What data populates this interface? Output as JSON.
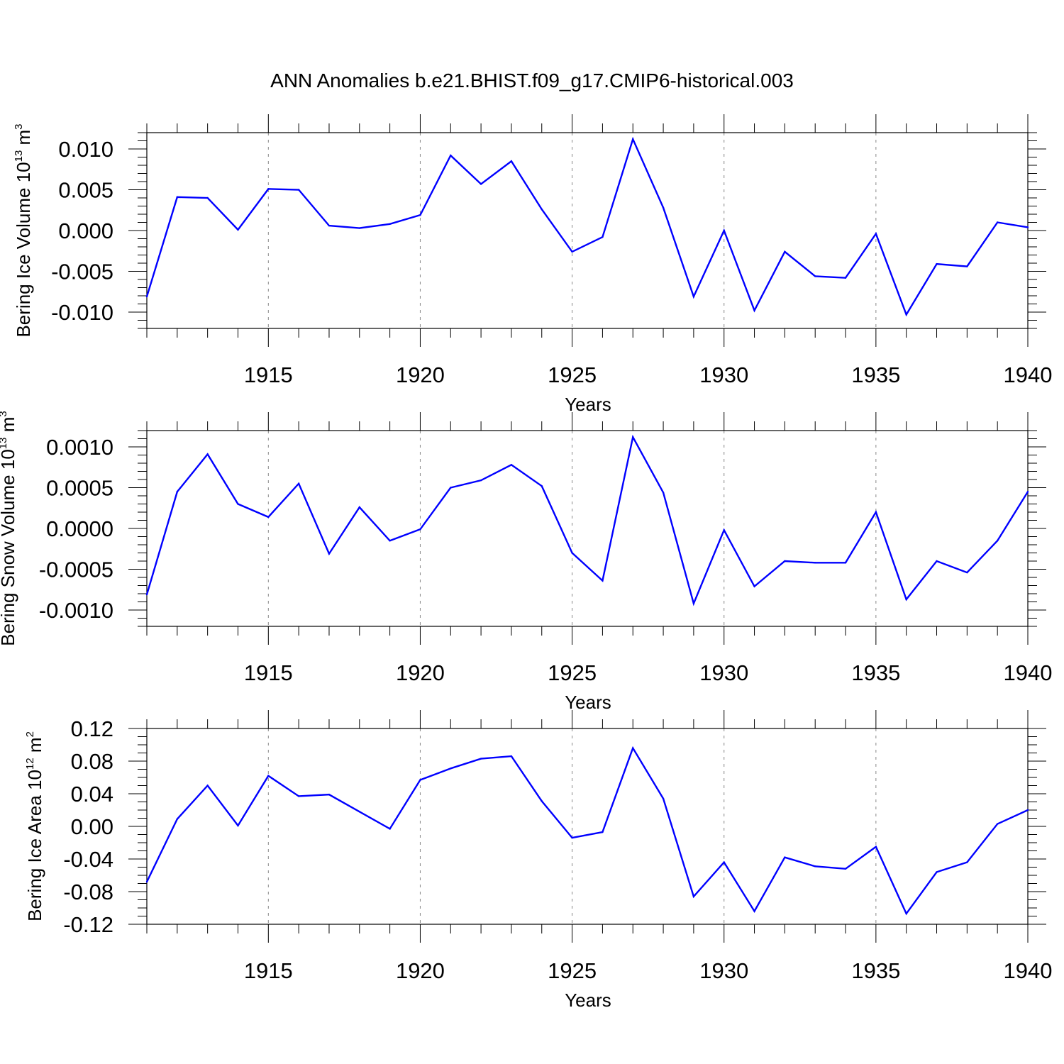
{
  "figure": {
    "title": "ANN Anomalies b.e21.BHIST.f09_g17.CMIP6-historical.003"
  },
  "chart_data": [
    {
      "type": "line",
      "xlabel": "Years",
      "ylabel": {
        "base": "Bering Ice Volume 10",
        "exponent": "13",
        "unit": " m",
        "unit_exponent": "3"
      },
      "xlim": [
        1911,
        1940
      ],
      "ylim": [
        -0.012,
        0.012
      ],
      "x_ticks": [
        1915,
        1920,
        1925,
        1930,
        1935,
        1940
      ],
      "x_tick_labels": [
        "1915",
        "1920",
        "1925",
        "1930",
        "1935",
        "1940"
      ],
      "y_ticks": [
        -0.01,
        -0.005,
        0.0,
        0.005,
        0.01
      ],
      "y_tick_labels": [
        "-0.010",
        "-0.005",
        "0.000",
        "0.005",
        "0.010"
      ],
      "y_minor_step": 0.001,
      "grid": "dashed vertical at major x ticks",
      "color": "#0000ff",
      "x": [
        1911,
        1912,
        1913,
        1914,
        1915,
        1916,
        1917,
        1918,
        1919,
        1920,
        1921,
        1922,
        1923,
        1924,
        1925,
        1926,
        1927,
        1928,
        1929,
        1930,
        1931,
        1932,
        1933,
        1934,
        1935,
        1936,
        1937,
        1938,
        1939,
        1940
      ],
      "values": [
        -0.0081,
        0.0041,
        0.004,
        0.0001,
        0.0051,
        0.005,
        0.0006,
        0.0003,
        0.0008,
        0.0019,
        0.0092,
        0.0057,
        0.0085,
        0.0026,
        -0.0026,
        -0.0008,
        0.0112,
        0.0028,
        -0.0081,
        0.0,
        -0.0098,
        -0.0026,
        -0.0056,
        -0.0058,
        -0.0004,
        -0.0103,
        -0.0041,
        -0.0044,
        0.001,
        0.0004
      ]
    },
    {
      "type": "line",
      "xlabel": "Years",
      "ylabel": {
        "base": "Bering Snow Volume 10",
        "exponent": "13",
        "unit": " m",
        "unit_exponent": "3"
      },
      "xlim": [
        1911,
        1940
      ],
      "ylim": [
        -0.0012,
        0.0012
      ],
      "x_ticks": [
        1915,
        1920,
        1925,
        1930,
        1935,
        1940
      ],
      "x_tick_labels": [
        "1915",
        "1920",
        "1925",
        "1930",
        "1935",
        "1940"
      ],
      "y_ticks": [
        -0.001,
        -0.0005,
        0.0,
        0.0005,
        0.001
      ],
      "y_tick_labels": [
        "-0.0010",
        "-0.0005",
        "0.0000",
        "0.0005",
        "0.0010"
      ],
      "y_minor_step": 0.0001,
      "grid": "dashed vertical at major x ticks",
      "color": "#0000ff",
      "x": [
        1911,
        1912,
        1913,
        1914,
        1915,
        1916,
        1917,
        1918,
        1919,
        1920,
        1921,
        1922,
        1923,
        1924,
        1925,
        1926,
        1927,
        1928,
        1929,
        1930,
        1931,
        1932,
        1933,
        1934,
        1935,
        1936,
        1937,
        1938,
        1939,
        1940
      ],
      "values": [
        -0.00081,
        0.00045,
        0.00091,
        0.0003,
        0.00014,
        0.00055,
        -0.00031,
        0.00026,
        -0.00015,
        -1e-05,
        0.0005,
        0.00059,
        0.00078,
        0.00052,
        -0.0003,
        -0.00064,
        0.00112,
        0.00044,
        -0.00092,
        -2e-05,
        -0.00071,
        -0.0004,
        -0.00042,
        -0.00042,
        0.0002,
        -0.00087,
        -0.0004,
        -0.00054,
        -0.00015,
        0.00045
      ]
    },
    {
      "type": "line",
      "xlabel": "Years",
      "ylabel": {
        "base": "Bering Ice Area 10",
        "exponent": "12",
        "unit": " m",
        "unit_exponent": "2"
      },
      "xlim": [
        1911,
        1940
      ],
      "ylim": [
        -0.12,
        0.12
      ],
      "x_ticks": [
        1915,
        1920,
        1925,
        1930,
        1935,
        1940
      ],
      "x_tick_labels": [
        "1915",
        "1920",
        "1925",
        "1930",
        "1935",
        "1940"
      ],
      "y_ticks": [
        -0.12,
        -0.08,
        -0.04,
        0.0,
        0.04,
        0.08,
        0.12
      ],
      "y_tick_labels": [
        "-0.12",
        "-0.08",
        "-0.04",
        "0.00",
        "0.04",
        "0.08",
        "0.12"
      ],
      "y_minor_step": 0.01,
      "grid": "dashed vertical at major x ticks",
      "color": "#0000ff",
      "x": [
        1911,
        1912,
        1913,
        1914,
        1915,
        1916,
        1917,
        1918,
        1919,
        1920,
        1921,
        1922,
        1923,
        1924,
        1925,
        1926,
        1927,
        1928,
        1929,
        1930,
        1931,
        1932,
        1933,
        1934,
        1935,
        1936,
        1937,
        1938,
        1939,
        1940
      ],
      "values": [
        -0.068,
        0.009,
        0.05,
        0.001,
        0.062,
        0.037,
        0.039,
        0.018,
        -0.003,
        0.057,
        0.071,
        0.083,
        0.086,
        0.031,
        -0.014,
        -0.007,
        0.096,
        0.034,
        -0.086,
        -0.044,
        -0.104,
        -0.038,
        -0.049,
        -0.052,
        -0.025,
        -0.107,
        -0.056,
        -0.044,
        0.003,
        0.02
      ]
    }
  ]
}
